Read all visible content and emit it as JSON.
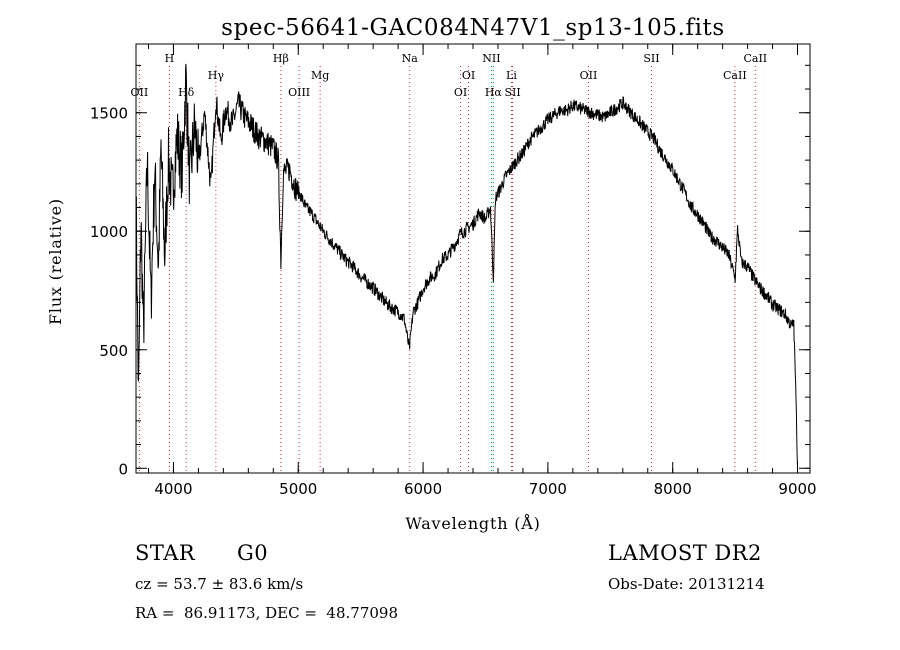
{
  "chart_data": {
    "type": "line",
    "title": "spec-56641-GAC084N47V1_sp13-105.fits",
    "xlabel": "Wavelength (Å)",
    "ylabel": "Flux (relative)",
    "xlim": [
      3700,
      9100
    ],
    "ylim": [
      -20,
      1790
    ],
    "x_ticks": [
      4000,
      5000,
      6000,
      7000,
      8000,
      9000
    ],
    "y_ticks": [
      0,
      500,
      1000,
      1500
    ],
    "x_minor_step": 200,
    "y_minor_step": 100,
    "grid": false,
    "line_color": "#000000",
    "marker_line_color": "#d03030",
    "series": [
      {
        "x": [
          3700,
          3720,
          3740,
          3760,
          3790,
          3820,
          3850,
          3880,
          3900,
          3930,
          3960,
          3990,
          4030,
          4070,
          4100,
          4130,
          4170,
          4200,
          4250,
          4300,
          4340,
          4380,
          4420,
          4470,
          4520,
          4570,
          4620,
          4680,
          4740,
          4800,
          4840,
          4861,
          4880,
          4930,
          4980,
          5020,
          5060,
          5100,
          5150,
          5200,
          5260,
          5320,
          5380,
          5440,
          5500,
          5560,
          5620,
          5680,
          5740,
          5800,
          5850,
          5890,
          5920,
          5960,
          6000,
          6050,
          6100,
          6150,
          6200,
          6250,
          6300,
          6350,
          6400,
          6450,
          6500,
          6540,
          6563,
          6580,
          6620,
          6660,
          6700,
          6750,
          6800,
          6850,
          6900,
          6950,
          7000,
          7050,
          7100,
          7150,
          7200,
          7250,
          7300,
          7350,
          7400,
          7450,
          7500,
          7550,
          7600,
          7650,
          7700,
          7750,
          7800,
          7850,
          7900,
          7950,
          8000,
          8050,
          8100,
          8150,
          8200,
          8250,
          8300,
          8350,
          8400,
          8450,
          8500,
          8520,
          8550,
          8600,
          8650,
          8700,
          8750,
          8800,
          8850,
          8900,
          8950,
          8970,
          8985,
          9000
        ],
        "y": [
          1150,
          300,
          1050,
          560,
          1300,
          700,
          1250,
          850,
          1350,
          900,
          1300,
          1150,
          1400,
          1250,
          1650,
          1200,
          1450,
          1280,
          1500,
          1180,
          1560,
          1380,
          1520,
          1450,
          1540,
          1480,
          1450,
          1400,
          1380,
          1350,
          1300,
          880,
          1250,
          1260,
          1180,
          1150,
          1100,
          1080,
          1040,
          1000,
          960,
          920,
          880,
          850,
          810,
          780,
          750,
          710,
          680,
          660,
          630,
          500,
          660,
          700,
          760,
          800,
          820,
          880,
          900,
          940,
          990,
          1010,
          1030,
          1080,
          1050,
          1100,
          800,
          1140,
          1180,
          1230,
          1260,
          1300,
          1330,
          1380,
          1410,
          1440,
          1470,
          1490,
          1510,
          1510,
          1530,
          1520,
          1510,
          1500,
          1490,
          1480,
          1500,
          1520,
          1540,
          1510,
          1480,
          1450,
          1420,
          1390,
          1340,
          1300,
          1260,
          1210,
          1160,
          1100,
          1070,
          1030,
          980,
          960,
          930,
          900,
          800,
          1010,
          870,
          850,
          800,
          760,
          730,
          690,
          670,
          650,
          600,
          610,
          350,
          10
        ]
      }
    ],
    "line_markers": [
      {
        "name": "OII",
        "x": 3727,
        "row": 2
      },
      {
        "name": "H",
        "x": 3968,
        "row": 0
      },
      {
        "name": "Hδ",
        "x": 4102,
        "row": 2
      },
      {
        "name": "Hγ",
        "x": 4340,
        "row": 1
      },
      {
        "name": "Hβ",
        "x": 4861,
        "row": 0
      },
      {
        "name": "OIII",
        "x": 5007,
        "row": 2
      },
      {
        "name": "Mg",
        "x": 5175,
        "row": 1
      },
      {
        "name": "Na",
        "x": 5893,
        "row": 0
      },
      {
        "name": "OI",
        "x": 6300,
        "row": 2
      },
      {
        "name": "OI",
        "x": 6364,
        "row": 1
      },
      {
        "name": "NII",
        "x": 6548,
        "row": 0
      },
      {
        "name": "Hα",
        "x": 6563,
        "row": 2
      },
      {
        "name": "Li",
        "x": 6708,
        "row": 1
      },
      {
        "name": "SII",
        "x": 6717,
        "row": 2
      },
      {
        "name": "OII",
        "x": 7325,
        "row": 1
      },
      {
        "name": "SII",
        "x": 7830,
        "row": 0
      },
      {
        "name": "CaII",
        "x": 8498,
        "row": 1
      },
      {
        "name": "CaII",
        "x": 8662,
        "row": 0
      }
    ]
  },
  "info": {
    "object_class": "STAR",
    "subclass": "G0",
    "survey": "LAMOST DR2",
    "velocity": "cz = 53.7 ± 83.6 km/s",
    "obs_date": "Obs-Date: 20131214",
    "coords": "RA =  86.91173, DEC =  48.77098"
  }
}
